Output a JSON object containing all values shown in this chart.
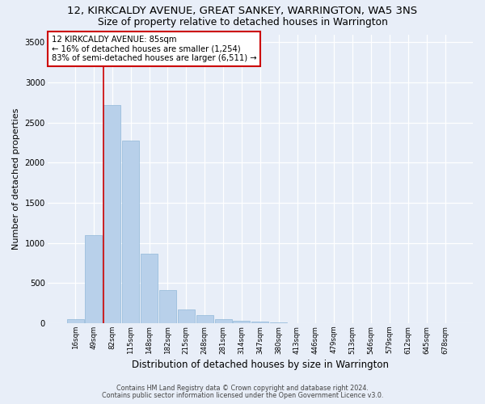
{
  "title1": "12, KIRKCALDY AVENUE, GREAT SANKEY, WARRINGTON, WA5 3NS",
  "title2": "Size of property relative to detached houses in Warrington",
  "xlabel": "Distribution of detached houses by size in Warrington",
  "ylabel": "Number of detached properties",
  "footnote1": "Contains HM Land Registry data © Crown copyright and database right 2024.",
  "footnote2": "Contains public sector information licensed under the Open Government Licence v3.0.",
  "bar_labels": [
    "16sqm",
    "49sqm",
    "82sqm",
    "115sqm",
    "148sqm",
    "182sqm",
    "215sqm",
    "248sqm",
    "281sqm",
    "314sqm",
    "347sqm",
    "380sqm",
    "413sqm",
    "446sqm",
    "479sqm",
    "513sqm",
    "546sqm",
    "579sqm",
    "612sqm",
    "645sqm",
    "678sqm"
  ],
  "bar_values": [
    50,
    1100,
    2720,
    2280,
    870,
    415,
    175,
    95,
    50,
    30,
    15,
    5,
    2,
    1,
    0,
    0,
    0,
    0,
    0,
    0,
    0
  ],
  "bar_color": "#b8d0ea",
  "bar_edge_color": "#90b8d8",
  "vline_color": "#cc0000",
  "vline_x_idx": 2,
  "annotation_line1": "12 KIRKCALDY AVENUE: 85sqm",
  "annotation_line2": "← 16% of detached houses are smaller (1,254)",
  "annotation_line3": "83% of semi-detached houses are larger (6,511) →",
  "annotation_box_facecolor": "#ffffff",
  "annotation_box_edgecolor": "#cc0000",
  "ylim": [
    0,
    3600
  ],
  "yticks": [
    0,
    500,
    1000,
    1500,
    2000,
    2500,
    3000,
    3500
  ],
  "bg_color": "#e8eef8",
  "grid_color": "#ffffff",
  "title1_fontsize": 9.5,
  "title2_fontsize": 8.8,
  "tick_fontsize": 6.2,
  "ylabel_fontsize": 8,
  "xlabel_fontsize": 8.5,
  "footnote_fontsize": 5.8
}
